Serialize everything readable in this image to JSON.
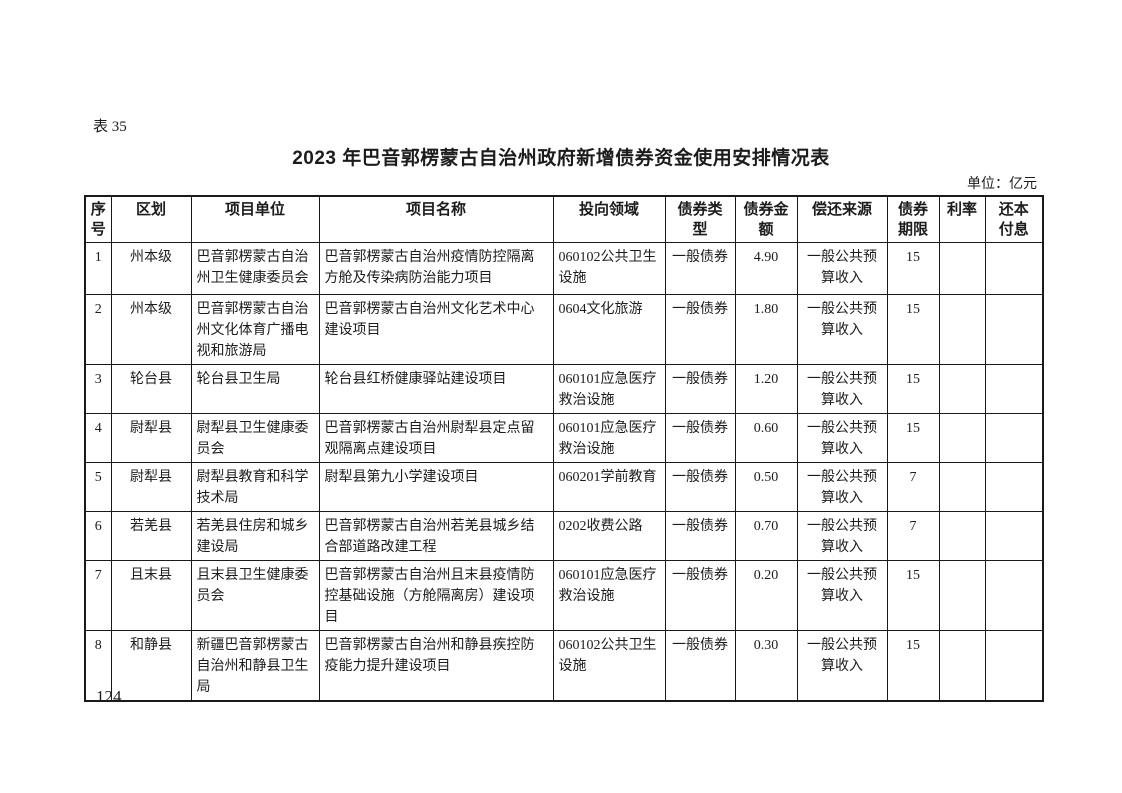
{
  "doc": {
    "table_label": "表 35",
    "title": "2023 年巴音郭楞蒙古自治州政府新增债券资金使用安排情况表",
    "unit_note": "单位：亿元",
    "page_number": "124"
  },
  "table": {
    "headers": [
      "序\n号",
      "区划",
      "项目单位",
      "项目名称",
      "投向领域",
      "债券类\n型",
      "债券金\n额",
      "偿还来源",
      "债券\n期限",
      "利率",
      "还本\n付息"
    ],
    "rows": [
      [
        "1",
        "州本级",
        "巴音郭楞蒙古自治州卫生健康委员会",
        "巴音郭楞蒙古自治州疫情防控隔离方舱及传染病防治能力项目",
        "060102公共卫生设施",
        "一般债券",
        "4.90",
        "一般公共预算收入",
        "15",
        "",
        ""
      ],
      [
        "2",
        "州本级",
        "巴音郭楞蒙古自治州文化体育广播电视和旅游局",
        "巴音郭楞蒙古自治州文化艺术中心建设项目",
        "0604文化旅游",
        "一般债券",
        "1.80",
        "一般公共预算收入",
        "15",
        "",
        ""
      ],
      [
        "3",
        "轮台县",
        "轮台县卫生局",
        "轮台县红桥健康驿站建设项目",
        "060101应急医疗救治设施",
        "一般债券",
        "1.20",
        "一般公共预算收入",
        "15",
        "",
        ""
      ],
      [
        "4",
        "尉犁县",
        "尉犁县卫生健康委员会",
        "巴音郭楞蒙古自治州尉犁县定点留观隔离点建设项目",
        "060101应急医疗救治设施",
        "一般债券",
        "0.60",
        "一般公共预算收入",
        "15",
        "",
        ""
      ],
      [
        "5",
        "尉犁县",
        "尉犁县教育和科学技术局",
        "尉犁县第九小学建设项目",
        "060201学前教育",
        "一般债券",
        "0.50",
        "一般公共预算收入",
        "7",
        "",
        ""
      ],
      [
        "6",
        "若羌县",
        "若羌县住房和城乡建设局",
        "巴音郭楞蒙古自治州若羌县城乡结合部道路改建工程",
        "0202收费公路",
        "一般债券",
        "0.70",
        "一般公共预算收入",
        "7",
        "",
        ""
      ],
      [
        "7",
        "且末县",
        "且末县卫生健康委员会",
        "巴音郭楞蒙古自治州且末县疫情防控基础设施（方舱隔离房）建设项目",
        "060101应急医疗救治设施",
        "一般债券",
        "0.20",
        "一般公共预算收入",
        "15",
        "",
        ""
      ],
      [
        "8",
        "和静县",
        "新疆巴音郭楞蒙古自治州和静县卫生局",
        "巴音郭楞蒙古自治州和静县疾控防疫能力提升建设项目",
        "060102公共卫生设施",
        "一般债券",
        "0.30",
        "一般公共预算收入",
        "15",
        "",
        ""
      ]
    ]
  }
}
